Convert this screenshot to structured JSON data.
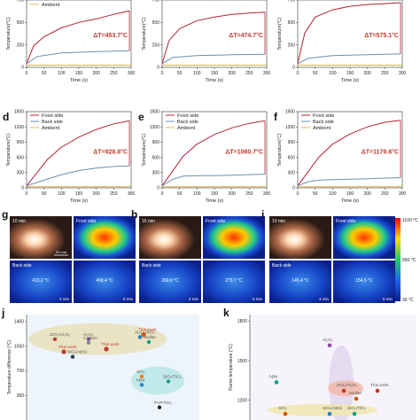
{
  "panels": [
    {
      "letter": "",
      "dT": "ΔT=453.7°C",
      "ymax": 750,
      "yticks": [
        0,
        250,
        500,
        750
      ],
      "front": [
        [
          0,
          40
        ],
        [
          20,
          240
        ],
        [
          50,
          340
        ],
        [
          100,
          440
        ],
        [
          150,
          500
        ],
        [
          200,
          540
        ],
        [
          250,
          590
        ],
        [
          295,
          630
        ]
      ],
      "back": [
        [
          0,
          40
        ],
        [
          30,
          120
        ],
        [
          100,
          160
        ],
        [
          200,
          175
        ],
        [
          295,
          185
        ]
      ],
      "amb": 25,
      "legend": [
        "Back side",
        "Ambient"
      ]
    },
    {
      "letter": "",
      "dT": "ΔT=474.7°C",
      "ymax": 750,
      "yticks": [
        0,
        250,
        500,
        750
      ],
      "front": [
        [
          0,
          40
        ],
        [
          20,
          300
        ],
        [
          50,
          430
        ],
        [
          100,
          520
        ],
        [
          150,
          560
        ],
        [
          200,
          590
        ],
        [
          250,
          605
        ],
        [
          295,
          615
        ]
      ],
      "back": [
        [
          0,
          40
        ],
        [
          30,
          110
        ],
        [
          100,
          130
        ],
        [
          200,
          140
        ],
        [
          295,
          145
        ]
      ],
      "amb": 25,
      "legend": []
    },
    {
      "letter": "",
      "dT": "ΔT=575.1°C",
      "ymax": 750,
      "yticks": [
        0,
        250,
        500,
        750
      ],
      "front": [
        [
          0,
          40
        ],
        [
          20,
          380
        ],
        [
          50,
          560
        ],
        [
          100,
          640
        ],
        [
          150,
          680
        ],
        [
          200,
          700
        ],
        [
          250,
          710
        ],
        [
          295,
          720
        ]
      ],
      "back": [
        [
          0,
          40
        ],
        [
          30,
          100
        ],
        [
          100,
          130
        ],
        [
          200,
          140
        ],
        [
          295,
          150
        ]
      ],
      "amb": 25,
      "legend": []
    },
    {
      "letter": "d",
      "dT": "ΔT=928.8°C",
      "ymax": 1500,
      "yticks": [
        0,
        300,
        600,
        900,
        1200,
        1500
      ],
      "front": [
        [
          0,
          40
        ],
        [
          30,
          300
        ],
        [
          60,
          560
        ],
        [
          100,
          800
        ],
        [
          150,
          1000
        ],
        [
          200,
          1150
        ],
        [
          250,
          1260
        ],
        [
          295,
          1320
        ]
      ],
      "back": [
        [
          0,
          40
        ],
        [
          50,
          150
        ],
        [
          100,
          260
        ],
        [
          150,
          340
        ],
        [
          200,
          390
        ],
        [
          250,
          420
        ],
        [
          295,
          430
        ]
      ],
      "amb": 25,
      "legend": [
        "Front side",
        "Back side",
        "Ambient"
      ]
    },
    {
      "letter": "e",
      "dT": "ΔT=1060.7°C",
      "ymax": 1500,
      "yticks": [
        0,
        300,
        600,
        900,
        1200,
        1500
      ],
      "front": [
        [
          0,
          40
        ],
        [
          30,
          330
        ],
        [
          60,
          620
        ],
        [
          100,
          860
        ],
        [
          150,
          1050
        ],
        [
          200,
          1180
        ],
        [
          250,
          1270
        ],
        [
          295,
          1320
        ]
      ],
      "back": [
        [
          0,
          40
        ],
        [
          30,
          170
        ],
        [
          60,
          230
        ],
        [
          100,
          240
        ],
        [
          150,
          240
        ],
        [
          200,
          250
        ],
        [
          250,
          260
        ],
        [
          295,
          270
        ]
      ],
      "amb": 25,
      "legend": [
        "Front side",
        "Back side",
        "Ambient"
      ]
    },
    {
      "letter": "f",
      "dT": "ΔT=1179.6°C",
      "ymax": 1500,
      "yticks": [
        0,
        300,
        600,
        900,
        1200,
        1500
      ],
      "front": [
        [
          0,
          40
        ],
        [
          30,
          320
        ],
        [
          60,
          600
        ],
        [
          100,
          860
        ],
        [
          150,
          1060
        ],
        [
          200,
          1200
        ],
        [
          250,
          1290
        ],
        [
          295,
          1330
        ]
      ],
      "back": [
        [
          0,
          40
        ],
        [
          30,
          120
        ],
        [
          60,
          150
        ],
        [
          100,
          160
        ],
        [
          150,
          170
        ],
        [
          200,
          180
        ],
        [
          250,
          190
        ],
        [
          295,
          200
        ]
      ],
      "amb": 25,
      "legend": [
        "Front side",
        "Back side",
        "Ambient"
      ]
    }
  ],
  "axis_labels": {
    "x": "Time (s)",
    "y": "Temperature(°C)"
  },
  "x_ticks": [
    0,
    50,
    100,
    150,
    200,
    250,
    300
  ],
  "photos": [
    {
      "letter": "g",
      "time": "10 min",
      "front": "Front side",
      "back": "Back side",
      "scale": "20 mm",
      "t1": "413.2 °C",
      "t2": "458.4 °C",
      "dur": "4 min",
      "dur2": "5 min"
    },
    {
      "letter": "h",
      "time": "15 min",
      "front": "Front side",
      "back": "Back side",
      "scale": "",
      "t1": "269.0 °C",
      "t2": "273.7 °C",
      "dur": "4 min",
      "dur2": "5 min"
    },
    {
      "letter": "i",
      "time": "10 min",
      "front": "Front side",
      "back": "Back side",
      "scale": "",
      "t1": "145.4 °C",
      "t2": "154.5 °C",
      "dur": "4 min",
      "dur2": "5 min"
    }
  ],
  "colorbar": {
    "max": "1100 °C",
    "mid": "550 °C",
    "min": "30 °C"
  },
  "panel_j": {
    "letter": "j",
    "ylabel": "Temperature difference (°C)",
    "yticks": [
      "1400",
      "1050",
      "700",
      "350"
    ],
    "labels": [
      {
        "text": "ZrO₂/Al₂O₃",
        "x": 62,
        "y": 1200
      },
      {
        "text": "Al₂O₃",
        "x": 100,
        "y": 1200
      },
      {
        "text": "Al₂O₃/SiO₂",
        "x": 158,
        "y": 1230
      },
      {
        "text": "Mullite",
        "x": 168,
        "y": 1160
      },
      {
        "text": "This work",
        "x": 162,
        "y": 1265
      },
      {
        "text": "Carbon",
        "x": 100,
        "y": 1150
      },
      {
        "text": "This work",
        "x": 72,
        "y": 1020
      },
      {
        "text": "This work",
        "x": 120,
        "y": 1060
      },
      {
        "text": "SiO₂/ABSi",
        "x": 82,
        "y": 950
      },
      {
        "text": "SiO₂",
        "x": 160,
        "y": 670
      },
      {
        "text": "SiO₂/TiO₂",
        "x": 190,
        "y": 600
      },
      {
        "text": "hBN",
        "x": 160,
        "y": 550
      },
      {
        "text": "PVP/TiO₂",
        "x": 180,
        "y": 230
      }
    ]
  },
  "panel_k": {
    "letter": "k",
    "ylabel": "Flame temperature (°C)",
    "yticks": [
      "1800",
      "1500",
      "1200"
    ],
    "labels": [
      {
        "text": "Al₂O₃",
        "x": 372,
        "y": 1650
      },
      {
        "text": "hBN",
        "x": 312,
        "y": 1370
      },
      {
        "text": "ZrO₂/Al₂O₃",
        "x": 388,
        "y": 1305
      },
      {
        "text": "This work",
        "x": 426,
        "y": 1305
      },
      {
        "text": "Mullite",
        "x": 402,
        "y": 1245
      },
      {
        "text": "SiO₂",
        "x": 322,
        "y": 1130
      },
      {
        "text": "SiO₂/ABSi",
        "x": 372,
        "y": 1130
      },
      {
        "text": "SiO₂/TiO₂",
        "x": 400,
        "y": 1130
      }
    ]
  },
  "colors": {
    "front": "#b22234",
    "back": "#6b8fb2",
    "ambient": "#d9b84a",
    "dT": "#c0392b"
  }
}
